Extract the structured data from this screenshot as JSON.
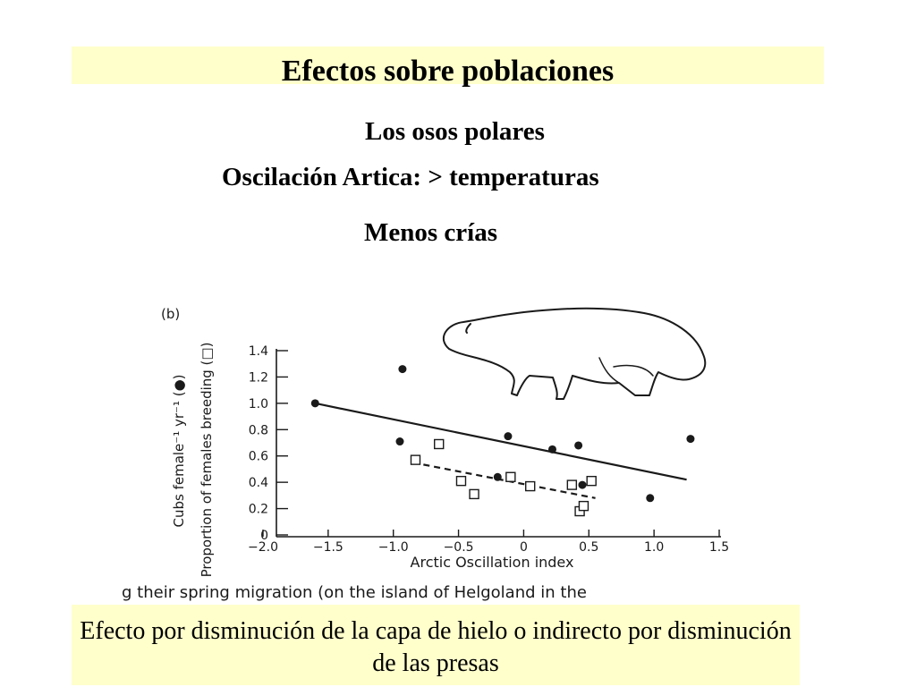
{
  "slide": {
    "title": "Efectos sobre poblaciones",
    "subtitle1": "Los osos polares",
    "subtitle2": "Oscilación Artica: > temperaturas",
    "subtitle3": "Menos crías",
    "bottom_text": "Efecto por disminución de la capa de hielo o indirecto por disminución de las  presas",
    "caption_fragment": "g their spring migration (on the island of Helgoland in the"
  },
  "colors": {
    "highlight": "#ffffcc",
    "ink": "#1a1a1a"
  },
  "chart_data": {
    "type": "scatter",
    "panel_label": "(b)",
    "xlabel": "Arctic Oscillation index",
    "ylabel_line1": "Cubs female⁻¹ yr⁻¹ (●)",
    "ylabel_line2": "Proportion of females breeding (□)",
    "xlim": [
      -2.0,
      1.5
    ],
    "ylim": [
      0,
      1.4
    ],
    "x_ticks": [
      "−2.0",
      "−1.5",
      "−1.0",
      "−0.5",
      "0",
      "0.5",
      "1.0",
      "1.5"
    ],
    "x_tick_values": [
      -2.0,
      -1.5,
      -1.0,
      -0.5,
      0,
      0.5,
      1.0,
      1.5
    ],
    "y_ticks": [
      "0",
      "0.2",
      "0.4",
      "0.6",
      "0.8",
      "1.0",
      "1.2",
      "1.4"
    ],
    "y_tick_values": [
      0,
      0.2,
      0.4,
      0.6,
      0.8,
      1.0,
      1.2,
      1.4
    ],
    "grid": false,
    "series": [
      {
        "marker": "filled-circle",
        "points": [
          [
            -1.6,
            1.0
          ],
          [
            -0.93,
            1.26
          ],
          [
            -0.95,
            0.71
          ],
          [
            -0.12,
            0.75
          ],
          [
            0.22,
            0.65
          ],
          [
            0.42,
            0.68
          ],
          [
            -0.2,
            0.44
          ],
          [
            0.45,
            0.38
          ],
          [
            0.97,
            0.28
          ],
          [
            1.28,
            0.73
          ]
        ],
        "fit": {
          "style": "solid",
          "x": [
            -1.6,
            1.25
          ],
          "y": [
            1.0,
            0.42
          ]
        }
      },
      {
        "marker": "open-square",
        "points": [
          [
            -0.65,
            0.69
          ],
          [
            -0.83,
            0.57
          ],
          [
            -0.48,
            0.41
          ],
          [
            -0.38,
            0.31
          ],
          [
            -0.1,
            0.44
          ],
          [
            0.05,
            0.37
          ],
          [
            0.37,
            0.38
          ],
          [
            0.52,
            0.41
          ],
          [
            0.43,
            0.18
          ],
          [
            0.46,
            0.22
          ]
        ],
        "fit": {
          "style": "dashed",
          "x": [
            -0.85,
            0.55
          ],
          "y": [
            0.55,
            0.28
          ]
        }
      }
    ]
  }
}
